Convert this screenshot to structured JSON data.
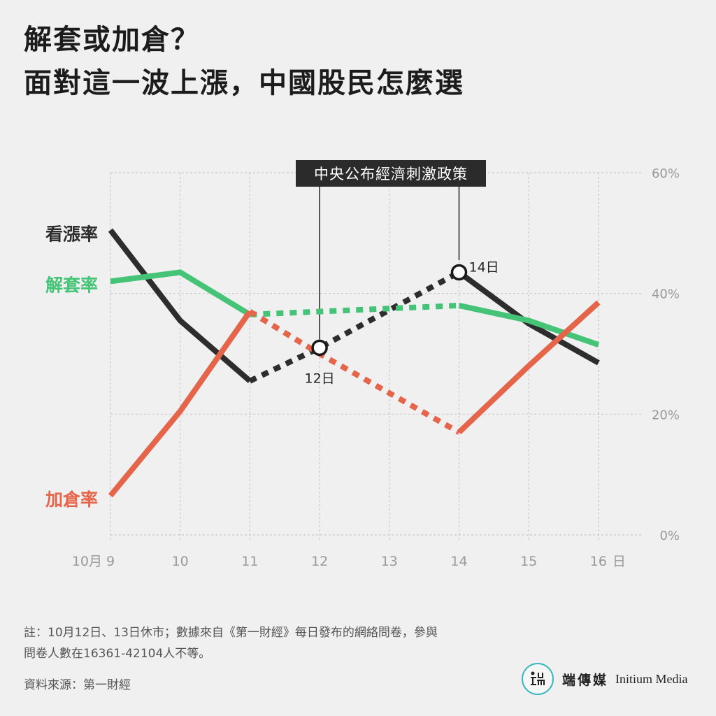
{
  "title": {
    "line1": "解套或加倉？",
    "line2": "面對這一波上漲，中國股民怎麼選"
  },
  "annotation": {
    "label": "中央公布經濟刺激政策",
    "point_12": "12日",
    "point_14": "14日"
  },
  "footnote": {
    "line1": "註：10月12日、13日休市；數據來自《第一財經》每日發布的網絡問卷，參與",
    "line2": "問卷人數在16361-42104人不等。"
  },
  "source": "資料來源：第一財經",
  "logo": {
    "cn": "端傳媒",
    "en": "Initium Media",
    "mark": "端"
  },
  "colors": {
    "bullish": "#2d2d2d",
    "unwind": "#45c477",
    "add": "#e5654b",
    "grid": "#c8c8c8",
    "axis_text": "#999999"
  },
  "chart_data": {
    "type": "line",
    "x": [
      9,
      10,
      11,
      12,
      13,
      14,
      15,
      16
    ],
    "x_tick_labels": [
      "9",
      "10",
      "11",
      "12",
      "13",
      "14",
      "15",
      "16"
    ],
    "x_unit_prefix": "10月",
    "x_unit_suffix": "日",
    "ylim": [
      0,
      60
    ],
    "y_ticks": [
      0,
      20,
      40,
      60
    ],
    "y_tick_labels": [
      "0%",
      "20%",
      "40%",
      "60%"
    ],
    "grid": true,
    "notes": "Dashed segments span 11→14 (market closed 12–13)",
    "series": [
      {
        "name": "看漲率",
        "color": "#2d2d2d",
        "label_y": 50,
        "solid": [
          [
            9,
            50.5
          ],
          [
            10,
            35.5
          ],
          [
            11,
            25.5
          ]
        ],
        "dashed": [
          [
            11,
            25.5
          ],
          [
            12,
            31
          ],
          [
            14,
            43.5
          ]
        ],
        "solid2": [
          [
            14,
            43.5
          ],
          [
            15,
            35
          ],
          [
            16,
            28.5
          ]
        ]
      },
      {
        "name": "解套率",
        "color": "#45c477",
        "label_y": 41.5,
        "solid": [
          [
            9,
            42
          ],
          [
            10,
            43.5
          ],
          [
            11,
            36.5
          ]
        ],
        "dashed": [
          [
            11,
            36.5
          ],
          [
            12,
            37
          ],
          [
            14,
            38
          ]
        ],
        "solid2": [
          [
            14,
            38
          ],
          [
            15,
            35.5
          ],
          [
            16,
            31.5
          ]
        ]
      },
      {
        "name": "加倉率",
        "color": "#e5654b",
        "label_y": 6,
        "solid": [
          [
            9,
            6.5
          ],
          [
            10,
            20.5
          ],
          [
            11,
            37
          ]
        ],
        "dashed": [
          [
            11,
            37
          ],
          [
            12,
            30
          ],
          [
            14,
            17
          ]
        ],
        "solid2": [
          [
            14,
            17
          ],
          [
            15,
            28
          ],
          [
            16,
            38.5
          ]
        ]
      }
    ],
    "markers": [
      {
        "x": 12,
        "y": 31,
        "label": "12日"
      },
      {
        "x": 14,
        "y": 43.5,
        "label": "14日"
      }
    ]
  }
}
